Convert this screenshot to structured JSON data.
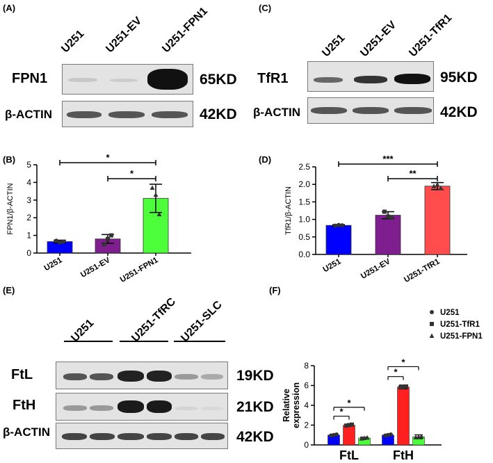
{
  "panels": {
    "a": "(A)",
    "b": "(B)",
    "c": "(C)",
    "d": "(D)",
    "e": "(E)",
    "f": "(F)"
  },
  "blot_a": {
    "lanes": [
      "U251",
      "U251-EV",
      "U251-FPN1"
    ],
    "rows": [
      "FPN1",
      "β-ACTIN"
    ],
    "sizes": [
      "65KD",
      "42KD"
    ]
  },
  "blot_c": {
    "lanes": [
      "U251",
      "U251-EV",
      "U251-TfR1"
    ],
    "rows": [
      "TfR1",
      "β-ACTIN"
    ],
    "sizes": [
      "95KD",
      "42KD"
    ]
  },
  "blot_e": {
    "groups": [
      "U251",
      "U251-TfRC",
      "U251-SLC"
    ],
    "rows": [
      "FtL",
      "FtH",
      "β-ACTIN"
    ],
    "sizes": [
      "19KD",
      "21KD",
      "42KD"
    ]
  },
  "colors": {
    "blue": "#0000ff",
    "purple": "#7f1f8f",
    "green": "#4dff3a",
    "red": "#ff2020",
    "redB": "#ff4d4d"
  },
  "chart_data": [
    {
      "type": "bar",
      "categories": [
        "U251",
        "U251-EV",
        "U251-FPN1"
      ],
      "values": [
        0.65,
        0.8,
        3.1
      ],
      "errors": [
        0.08,
        0.25,
        0.8
      ],
      "points": [
        [
          0.7,
          0.6,
          0.65
        ],
        [
          0.5,
          0.8,
          1.0
        ],
        [
          3.7,
          3.3,
          2.2
        ]
      ],
      "ylabel": "FPN1/β-ACTIN",
      "ylim": [
        0,
        5
      ],
      "yticks": [
        "0",
        "1",
        "2",
        "3",
        "4",
        "5"
      ],
      "colors": [
        "#0000ff",
        "#7f1f8f",
        "#4dff3a"
      ],
      "sig": [
        "*",
        "*"
      ]
    },
    {
      "type": "bar",
      "categories": [
        "U251",
        "U251-EV",
        "U251-TfR1"
      ],
      "values": [
        0.83,
        1.12,
        1.95
      ],
      "errors": [
        0.02,
        0.1,
        0.1
      ],
      "points": [
        [
          0.82,
          0.84,
          0.83
        ],
        [
          1.22,
          1.08,
          1.05
        ],
        [
          1.95,
          2.0,
          1.9
        ]
      ],
      "ylabel": "TfR1/β-ACTIN",
      "ylim": [
        0,
        2.5
      ],
      "yticks": [
        "0.0",
        "0.5",
        "1.0",
        "1.5",
        "2.0",
        "2.5"
      ],
      "colors": [
        "#0000ff",
        "#7f1f8f",
        "#ff4d4d"
      ],
      "sig": [
        "***",
        "**"
      ]
    },
    {
      "type": "bar",
      "categories": [
        "FtL",
        "FtH"
      ],
      "series": [
        {
          "name": "U251",
          "values": [
            1.0,
            1.0
          ],
          "errors": [
            0.05,
            0.05
          ]
        },
        {
          "name": "U251-TfR1",
          "values": [
            2.0,
            5.85
          ],
          "errors": [
            0.08,
            0.2
          ]
        },
        {
          "name": "U251-FPN1",
          "values": [
            0.7,
            0.82
          ],
          "errors": [
            0.08,
            0.2
          ]
        }
      ],
      "ylabel": "Relative expression",
      "ylim": [
        0,
        8
      ],
      "yticks": [
        "0",
        "2",
        "4",
        "6",
        "8"
      ],
      "colors": [
        "#0000ff",
        "#ff2020",
        "#4dff3a"
      ],
      "sig": [
        "*",
        "*",
        "*",
        "*"
      ],
      "legend": "top-right"
    }
  ]
}
